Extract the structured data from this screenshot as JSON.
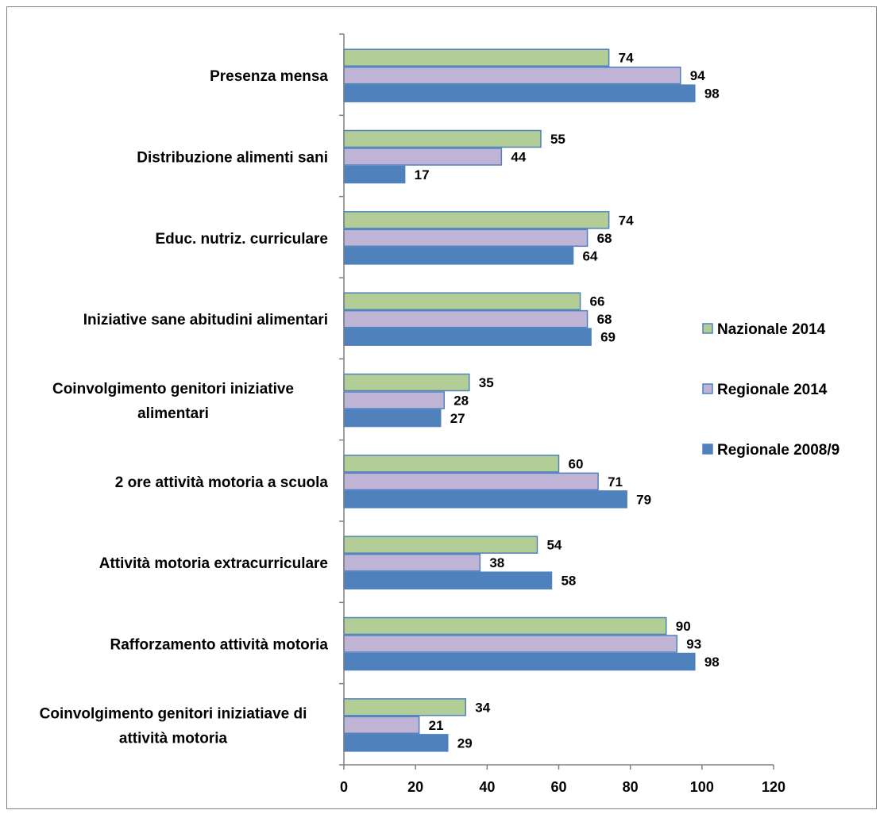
{
  "chart_data": {
    "type": "bar",
    "orientation": "horizontal",
    "categories": [
      "Presenza mensa",
      "Distribuzione alimenti sani",
      "Educ. nutriz. curriculare",
      "Iniziative sane abitudini alimentari",
      "Coinvolgimento genitori iniziative alimentari",
      "2 ore attività motoria a scuola",
      "Attività motoria extracurriculare",
      "Rafforzamento attività motoria",
      "Coinvolgimento genitori iniziatiave di attività motoria"
    ],
    "category_lines": [
      [
        "Presenza mensa"
      ],
      [
        "Distribuzione alimenti sani"
      ],
      [
        "Educ. nutriz. curriculare"
      ],
      [
        "Iniziative sane abitudini alimentari"
      ],
      [
        "Coinvolgimento genitori iniziative",
        "alimentari"
      ],
      [
        "2 ore attività motoria a scuola"
      ],
      [
        "Attività motoria extracurriculare"
      ],
      [
        "Rafforzamento attività motoria"
      ],
      [
        "Coinvolgimento genitori iniziatiave di",
        "attività motoria"
      ]
    ],
    "series": [
      {
        "name": "Nazionale 2014",
        "color": "#B3CD97",
        "border": "#4F81BD",
        "values": [
          74,
          55,
          74,
          66,
          35,
          60,
          54,
          90,
          34
        ]
      },
      {
        "name": "Regionale 2014",
        "color": "#C0B4D6",
        "border": "#4F81BD",
        "values": [
          94,
          44,
          68,
          68,
          28,
          71,
          38,
          93,
          21
        ]
      },
      {
        "name": "Regionale 2008/9",
        "color": "#4F81BD",
        "border": "#4F81BD",
        "values": [
          98,
          17,
          64,
          69,
          27,
          79,
          58,
          98,
          29
        ]
      }
    ],
    "xlim": [
      0,
      120
    ],
    "xticks": [
      0,
      20,
      40,
      60,
      80,
      100,
      120
    ],
    "data_labels": true,
    "grid": false,
    "legend_position": "right",
    "title": "",
    "xlabel": "",
    "ylabel": ""
  }
}
